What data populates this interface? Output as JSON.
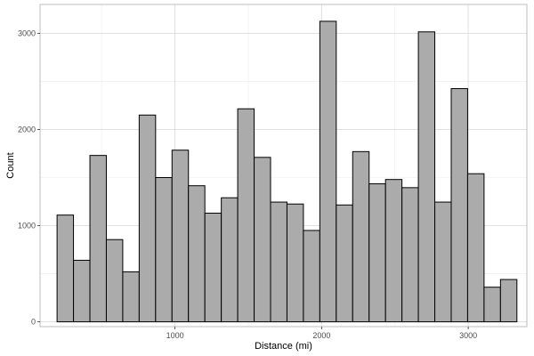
{
  "chart_data": {
    "type": "bar",
    "xlabel": "Distance (mi)",
    "ylabel": "Count",
    "xlim": [
      80,
      3400
    ],
    "ylim": [
      -50,
      3300
    ],
    "x_ticks": [
      1000,
      2000,
      3000
    ],
    "x_tick_labels": [
      "1000",
      "2000",
      "3000"
    ],
    "y_ticks": [
      0,
      1000,
      2000,
      3000
    ],
    "y_tick_labels": [
      "0",
      "1000",
      "2000",
      "3000"
    ],
    "bin_start": 196,
    "bin_width": 112,
    "values": [
      1110,
      640,
      1730,
      855,
      520,
      2150,
      1500,
      1785,
      1415,
      1130,
      1290,
      2215,
      1710,
      1245,
      1225,
      950,
      3125,
      1215,
      1770,
      1435,
      1480,
      1395,
      3015,
      1245,
      2425,
      1540,
      360,
      440
    ],
    "grid": true,
    "bar_color": "#ababab",
    "bar_edge_color": "#000000"
  }
}
